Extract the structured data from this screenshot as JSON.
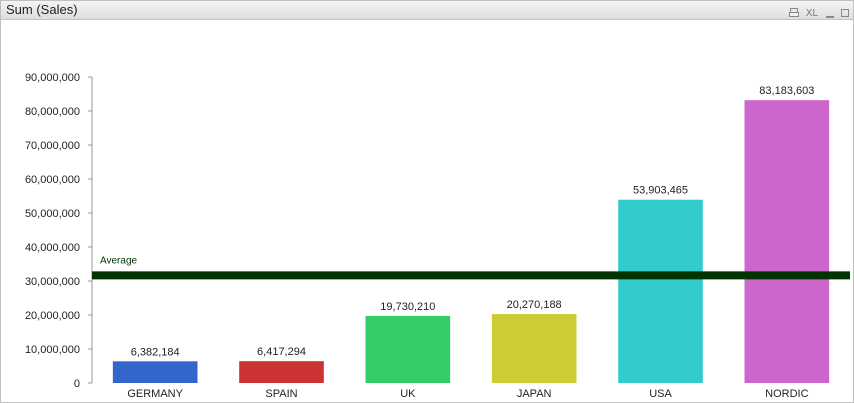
{
  "window": {
    "title": "Sum (Sales)",
    "icons": [
      {
        "name": "print-icon",
        "label": ""
      },
      {
        "name": "excel-export-icon",
        "label": "XL"
      },
      {
        "name": "minimize-icon",
        "label": ""
      },
      {
        "name": "restore-icon",
        "label": ""
      }
    ]
  },
  "chart_data": {
    "type": "bar",
    "title": "",
    "xlabel": "",
    "ylabel": "",
    "categories": [
      "GERMANY",
      "SPAIN",
      "UK",
      "JAPAN",
      "USA",
      "NORDIC"
    ],
    "values": [
      6382184,
      6417294,
      19730210,
      20270188,
      53903465,
      83183603
    ],
    "value_labels": [
      "6,382,184",
      "6,417,294",
      "19,730,210",
      "20,270,188",
      "53,903,465",
      "83,183,603"
    ],
    "colors": [
      "#3366cc",
      "#cc3333",
      "#33cc66",
      "#cccc33",
      "#33cccc",
      "#cc66cc"
    ],
    "ylim": [
      0,
      90000000
    ],
    "yticks": [
      0,
      10000000,
      20000000,
      30000000,
      40000000,
      50000000,
      60000000,
      70000000,
      80000000,
      90000000
    ],
    "ytick_labels": [
      "0",
      "10,000,000",
      "20,000,000",
      "30,000,000",
      "40,000,000",
      "50,000,000",
      "60,000,000",
      "70,000,000",
      "80,000,000",
      "90,000,000"
    ],
    "grid": false,
    "legend": "none",
    "reference_line": {
      "label": "Average",
      "value": 31647824,
      "color": "#003300"
    }
  }
}
